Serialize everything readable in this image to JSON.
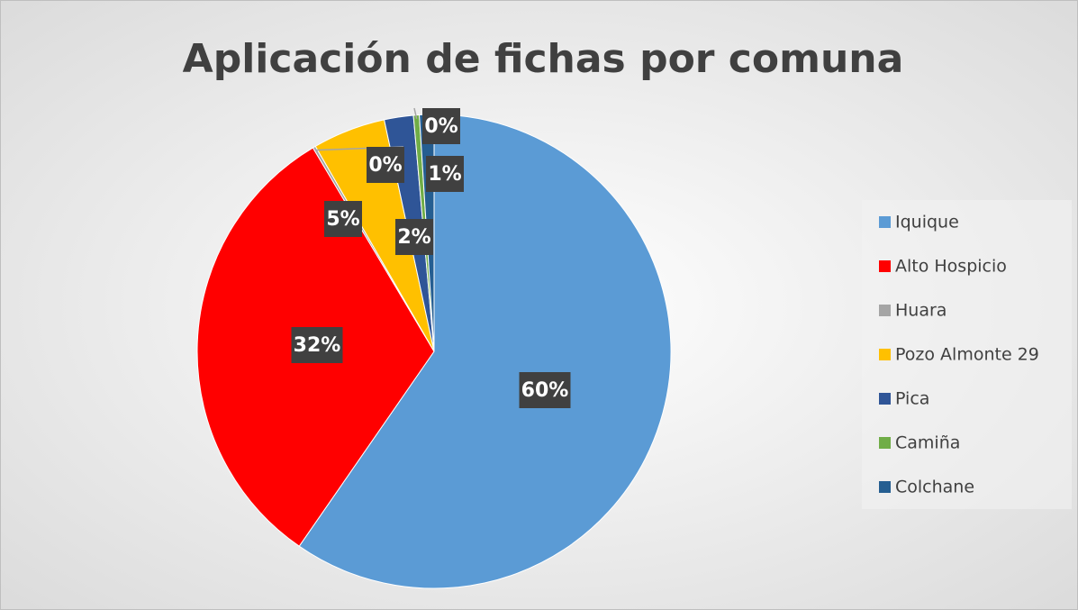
{
  "chart_data": {
    "type": "pie",
    "title": "Aplicación de fichas por comuna",
    "categories": [
      "Iquique",
      "Alto Hospicio",
      "Huara",
      "Pozo Almonte 29",
      "Pica",
      "Camiña",
      "Colchane"
    ],
    "values": [
      60,
      32,
      0.2,
      5,
      2,
      0.4,
      1
    ],
    "value_labels": [
      "60%",
      "32%",
      "0%",
      "5%",
      "2%",
      "0%",
      "1%"
    ],
    "colors": [
      "#5b9bd5",
      "#ff0000",
      "#a5a5a5",
      "#ffc000",
      "#2f5597",
      "#70ad47",
      "#255e91"
    ],
    "legend": "right"
  }
}
